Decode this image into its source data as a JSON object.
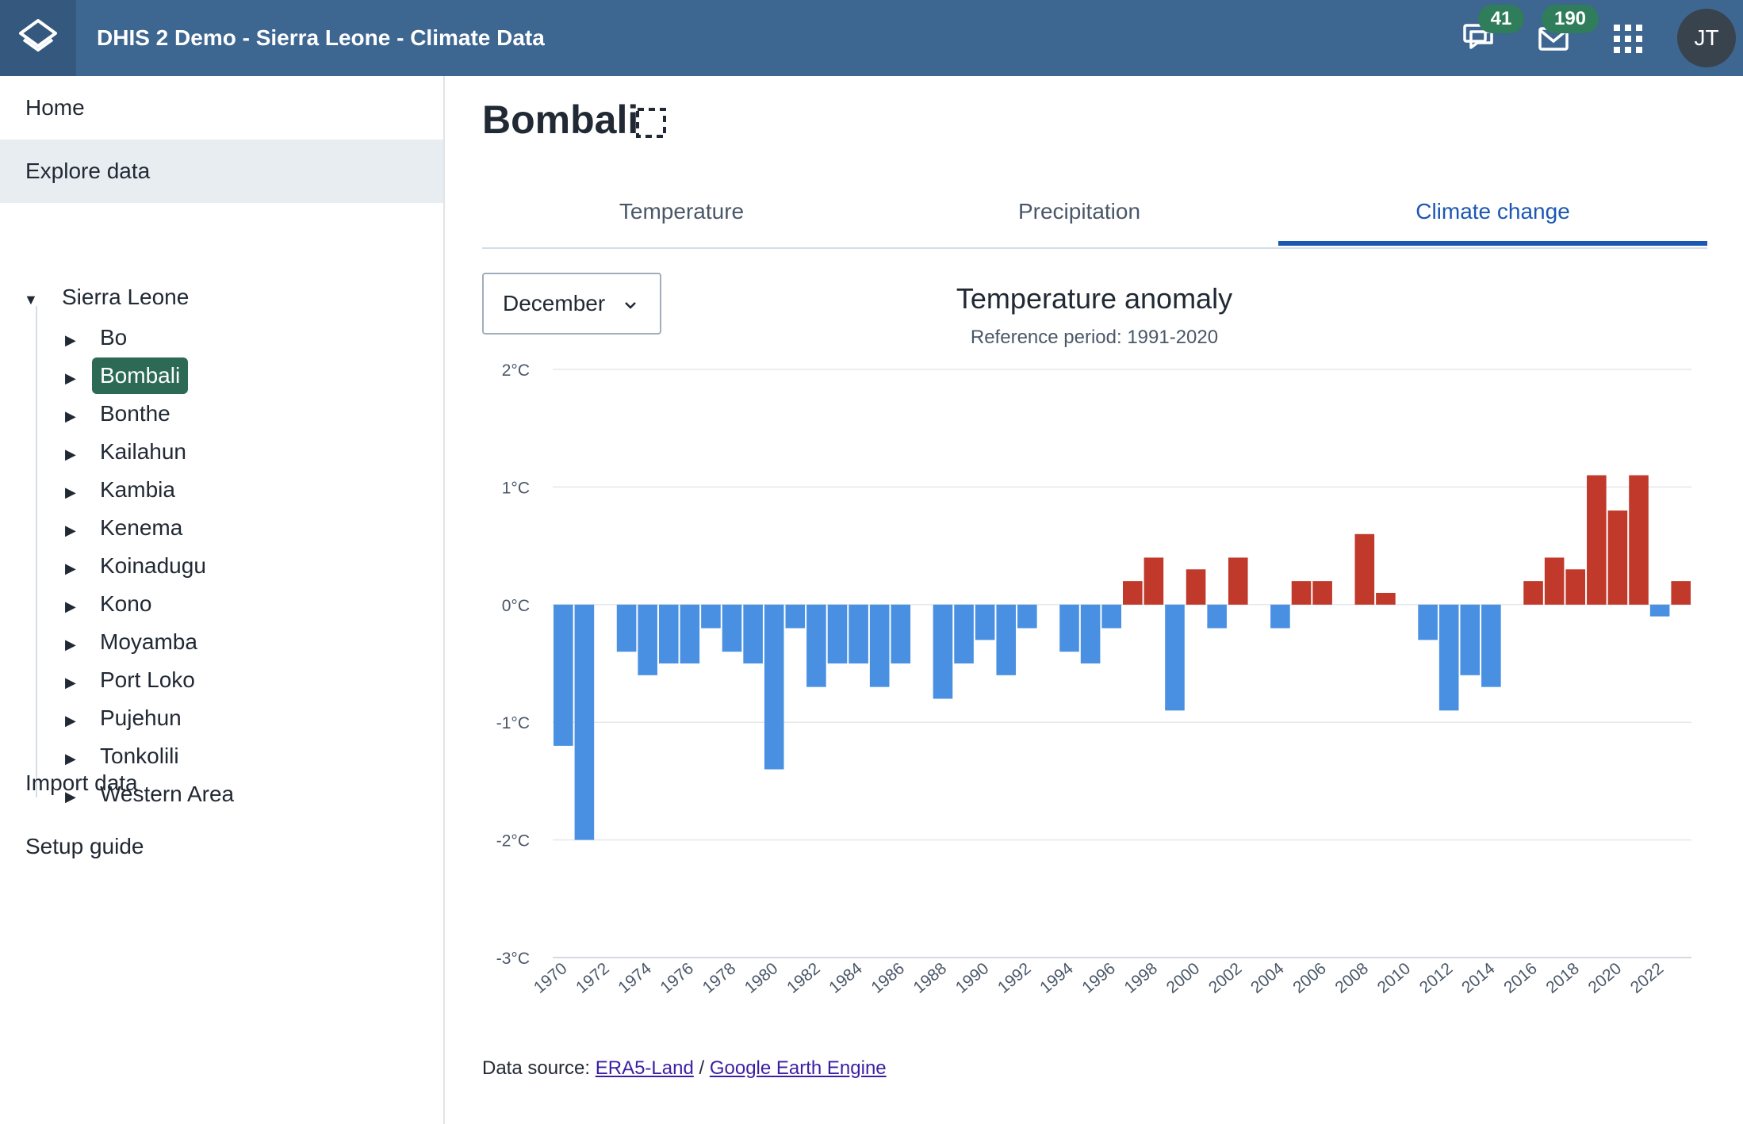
{
  "header": {
    "app_title": "DHIS 2 Demo - Sierra Leone - Climate Data",
    "interpretations_count": "41",
    "messages_count": "190",
    "user_initials": "JT",
    "icons": [
      "dhis2-logo-icon",
      "interpretations-icon",
      "messages-icon",
      "apps-grid-icon"
    ]
  },
  "sidebar": {
    "home": "Home",
    "explore": "Explore data",
    "tree_root": "Sierra Leone",
    "districts": [
      "Bo",
      "Bombali",
      "Bonthe",
      "Kailahun",
      "Kambia",
      "Kenema",
      "Koinadugu",
      "Kono",
      "Moyamba",
      "Port Loko",
      "Pujehun",
      "Tonkolili",
      "Western Area"
    ],
    "selected_district": "Bombali",
    "import": "Import data",
    "setup": "Setup guide"
  },
  "main": {
    "title": "Bombali",
    "tabs": [
      "Temperature",
      "Precipitation",
      "Climate change"
    ],
    "active_tab": "Climate change",
    "month": "December",
    "source_prefix": "Data source: ",
    "source_link1": "ERA5-Land",
    "source_sep": " / ",
    "source_link2": "Google Earth Engine"
  },
  "colors": {
    "header_bg": "#3d6691",
    "accent": "#1c57b3",
    "positive_bar": "#c0392b",
    "negative_bar": "#4a90e2",
    "selected_bg": "#2c6a56",
    "badge_bg": "#2f7d5a"
  },
  "chart_data": {
    "type": "bar",
    "title": "Temperature anomaly",
    "subtitle": "Reference period: 1991-2020",
    "xlabel": "",
    "ylabel": "",
    "ylim": [
      -3,
      2
    ],
    "y_ticks": [
      "2°C",
      "1°C",
      "0°C",
      "-1°C",
      "-2°C",
      "-3°C"
    ],
    "grid": true,
    "categories": [
      1970,
      1971,
      1972,
      1973,
      1974,
      1975,
      1976,
      1977,
      1978,
      1979,
      1980,
      1981,
      1982,
      1983,
      1984,
      1985,
      1986,
      1987,
      1988,
      1989,
      1990,
      1991,
      1992,
      1993,
      1994,
      1995,
      1996,
      1997,
      1998,
      1999,
      2000,
      2001,
      2002,
      2003,
      2004,
      2005,
      2006,
      2007,
      2008,
      2009,
      2010,
      2011,
      2012,
      2013,
      2014,
      2015,
      2016,
      2017,
      2018,
      2019,
      2020,
      2021,
      2022,
      2023
    ],
    "x_tick_labels": [
      "1970",
      "1972",
      "1974",
      "1976",
      "1978",
      "1980",
      "1982",
      "1984",
      "1986",
      "1988",
      "1990",
      "1992",
      "1994",
      "1996",
      "1998",
      "2000",
      "2002",
      "2004",
      "2006",
      "2008",
      "2010",
      "2012",
      "2014",
      "2016",
      "2018",
      "2020",
      "2022"
    ],
    "values": [
      -1.2,
      -2.0,
      0.0,
      -0.4,
      -0.6,
      -0.5,
      -0.5,
      -0.2,
      -0.4,
      -0.5,
      -1.4,
      -0.2,
      -0.7,
      -0.5,
      -0.5,
      -0.7,
      -0.5,
      0.0,
      -0.8,
      -0.5,
      -0.3,
      -0.6,
      -0.2,
      0.0,
      -0.4,
      -0.5,
      -0.2,
      0.2,
      0.4,
      -0.9,
      0.3,
      -0.2,
      0.4,
      0.0,
      -0.2,
      0.2,
      0.2,
      0.0,
      0.6,
      0.1,
      0.0,
      -0.3,
      -0.9,
      -0.6,
      -0.7,
      0.0,
      0.2,
      0.4,
      0.3,
      1.1,
      0.8,
      1.1,
      -0.1,
      0.2
    ]
  }
}
